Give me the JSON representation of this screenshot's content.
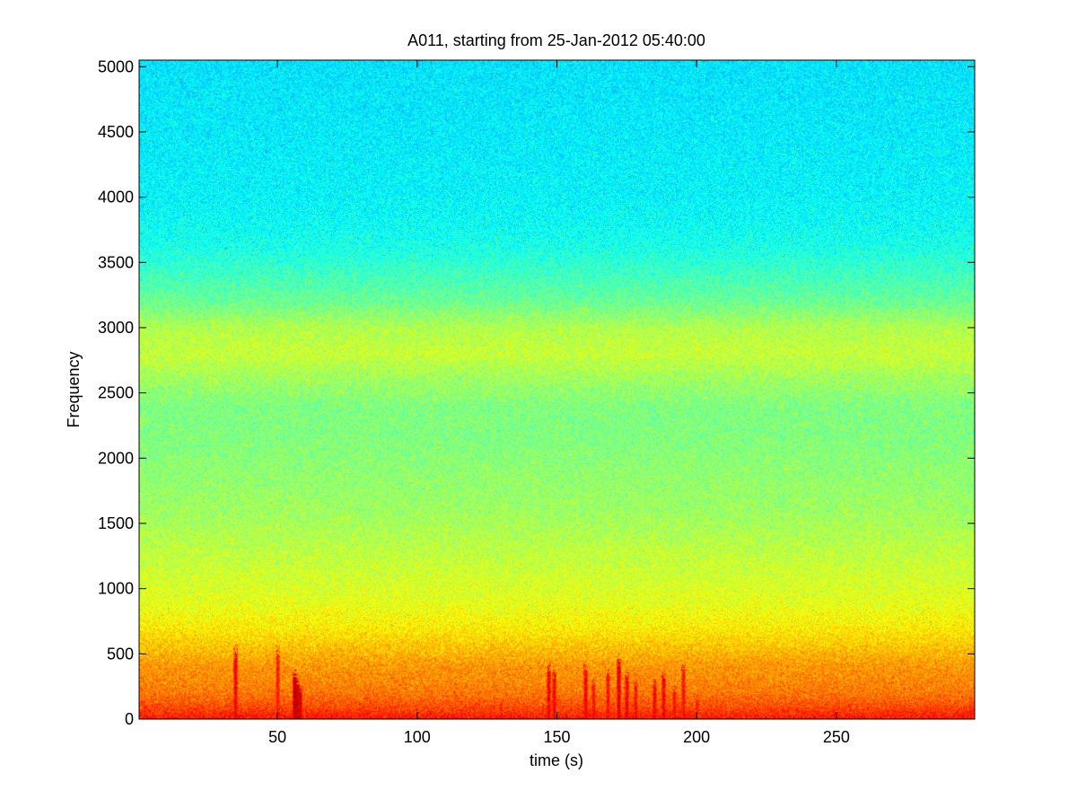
{
  "chart_data": {
    "type": "heatmap",
    "title": "A011, starting from 25-Jan-2012 05:40:00",
    "xlabel": "time (s)",
    "ylabel": "Frequency",
    "xlim": [
      0.5,
      299.5
    ],
    "ylim": [
      0,
      5050
    ],
    "xticks": [
      50,
      100,
      150,
      200,
      250
    ],
    "yticks": [
      0,
      500,
      1000,
      1500,
      2000,
      2500,
      3000,
      3500,
      4000,
      4500,
      5000
    ],
    "colormap": "jet",
    "grid": false,
    "legend": "none",
    "band_intensity": {
      "frequency": [
        0,
        100,
        200,
        300,
        400,
        500,
        600,
        700,
        800,
        900,
        1000,
        1200,
        1400,
        1600,
        1800,
        2000,
        2200,
        2400,
        2600,
        2800,
        3000,
        3200,
        3400,
        3600,
        3800,
        4000,
        4500,
        5050
      ],
      "level": [
        0.86,
        0.8,
        0.76,
        0.74,
        0.73,
        0.7,
        0.67,
        0.64,
        0.62,
        0.6,
        0.59,
        0.57,
        0.55,
        0.53,
        0.52,
        0.51,
        0.5,
        0.5,
        0.53,
        0.57,
        0.55,
        0.48,
        0.44,
        0.4,
        0.38,
        0.37,
        0.36,
        0.35
      ]
    },
    "broadband_events": [
      {
        "time": 35,
        "fmax": 450,
        "level": 0.95
      },
      {
        "time": 50,
        "fmax": 450,
        "level": 0.92
      },
      {
        "time": 56,
        "fmax": 300,
        "level": 1.0
      },
      {
        "time": 57,
        "fmax": 250,
        "level": 1.0
      },
      {
        "time": 58,
        "fmax": 200,
        "level": 0.98
      },
      {
        "time": 130,
        "fmax": 120,
        "level": 0.9
      },
      {
        "time": 147,
        "fmax": 350,
        "level": 0.95
      },
      {
        "time": 149,
        "fmax": 300,
        "level": 0.95
      },
      {
        "time": 160,
        "fmax": 350,
        "level": 0.95
      },
      {
        "time": 163,
        "fmax": 250,
        "level": 0.93
      },
      {
        "time": 168,
        "fmax": 300,
        "level": 0.93
      },
      {
        "time": 172,
        "fmax": 400,
        "level": 0.97
      },
      {
        "time": 175,
        "fmax": 300,
        "level": 0.95
      },
      {
        "time": 178,
        "fmax": 250,
        "level": 0.93
      },
      {
        "time": 185,
        "fmax": 250,
        "level": 0.95
      },
      {
        "time": 188,
        "fmax": 300,
        "level": 0.95
      },
      {
        "time": 192,
        "fmax": 200,
        "level": 0.93
      },
      {
        "time": 195,
        "fmax": 350,
        "level": 0.93
      },
      {
        "time": 200,
        "fmax": 150,
        "level": 0.9
      },
      {
        "time": 298,
        "fmax": 100,
        "level": 0.9
      }
    ]
  }
}
